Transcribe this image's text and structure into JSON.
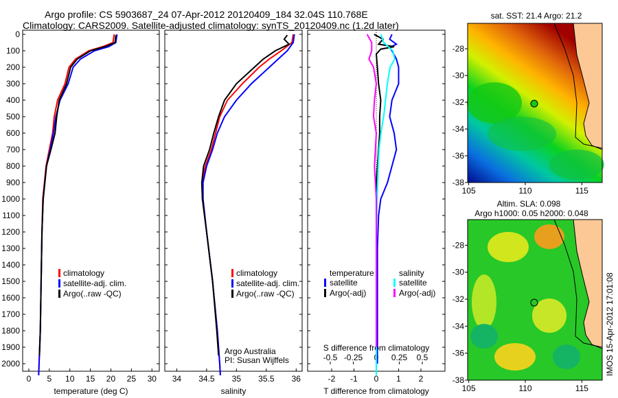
{
  "title": {
    "line1": "Argo profile: CS 5903687_24 07-Apr-2012 20120409_184 32.04S 110.768E",
    "line2": "Climatology: CARS2009. Satellite-adjusted climatology: synTS_20120409.nc (1.2d later)"
  },
  "timestamp": "IMOS 15-Apr-2012 17:01:08",
  "chart_data": [
    {
      "type": "line",
      "id": "temperature",
      "xlabel": "temperature (deg C)",
      "ylabel": "",
      "xlim": [
        -1.5,
        31.8
      ],
      "ylim": [
        2070,
        0
      ],
      "xticks": [
        0,
        5,
        10,
        15,
        20,
        25,
        30
      ],
      "yticks": [
        0,
        100,
        200,
        300,
        400,
        500,
        600,
        700,
        800,
        900,
        1000,
        1100,
        1200,
        1300,
        1400,
        1500,
        1600,
        1700,
        1800,
        1900,
        2000
      ],
      "legend": [
        "climatology",
        "satellite-adj. clim.",
        "Argo(..raw -QC)"
      ],
      "legend_position": "lower-center",
      "series": [
        {
          "name": "climatology",
          "color": "#ff0000",
          "depth": [
            0,
            50,
            75,
            100,
            150,
            200,
            300,
            400,
            500,
            600,
            700,
            800,
            900,
            1000,
            1200,
            1500,
            1800,
            2000,
            2070
          ],
          "values": [
            20.8,
            20.5,
            18,
            14.6,
            11.4,
            9.8,
            8.8,
            7.0,
            6.2,
            5.8,
            5.0,
            4.2,
            3.8,
            3.4,
            3.2,
            3.0,
            2.8,
            2.5,
            2.4
          ]
        },
        {
          "name": "satellite-adj. clim.",
          "color": "#0000ff",
          "depth": [
            0,
            50,
            75,
            100,
            150,
            200,
            300,
            400,
            500,
            600,
            700,
            800,
            900,
            1000,
            1200,
            1500,
            1800,
            2000,
            2070
          ],
          "values": [
            21.5,
            21.2,
            19.5,
            16,
            12.6,
            10.8,
            9.6,
            7.6,
            6.6,
            6.0,
            5.2,
            4.3,
            3.9,
            3.5,
            3.2,
            3.0,
            2.8,
            2.5,
            2.4
          ]
        },
        {
          "name": "Argo(..raw -QC)",
          "color": "#000000",
          "depth": [
            5,
            50,
            75,
            100,
            150,
            200,
            300,
            400,
            500,
            600,
            700,
            800,
            900,
            1000,
            1200,
            1500,
            1800,
            1950
          ],
          "values": [
            21.2,
            21.0,
            18.5,
            15.0,
            11.8,
            10.2,
            9.2,
            7.4,
            6.8,
            6.4,
            5.4,
            4.3,
            3.9,
            3.5,
            3.2,
            3.0,
            2.8,
            2.6
          ]
        }
      ]
    },
    {
      "type": "line",
      "id": "salinity",
      "xlabel": "salinity",
      "xlim": [
        33.8,
        36.1
      ],
      "ylim": [
        2070,
        0
      ],
      "xticks": [
        34,
        34.5,
        35,
        35.5,
        36
      ],
      "legend": [
        "climatology",
        "satellite-adj. clim.",
        "Argo(..raw -QC)"
      ],
      "annotation": [
        "Argo Australia",
        "PI: Susan Wijffels"
      ],
      "series": [
        {
          "name": "climatology",
          "color": "#ff0000",
          "depth": [
            0,
            50,
            100,
            150,
            200,
            300,
            400,
            500,
            600,
            700,
            800,
            900,
            1000,
            1200,
            1500,
            1800,
            2000,
            2070
          ],
          "values": [
            35.95,
            35.93,
            35.75,
            35.55,
            35.38,
            35.1,
            34.85,
            34.72,
            34.65,
            34.58,
            34.48,
            34.42,
            34.43,
            34.5,
            34.6,
            34.68,
            34.72,
            34.73
          ]
        },
        {
          "name": "satellite-adj. clim.",
          "color": "#0000ff",
          "depth": [
            0,
            50,
            100,
            150,
            200,
            300,
            400,
            500,
            600,
            700,
            800,
            900,
            1000,
            1200,
            1500,
            1800,
            2000,
            2070
          ],
          "values": [
            35.97,
            35.95,
            35.85,
            35.7,
            35.55,
            35.25,
            35.0,
            34.8,
            34.68,
            34.6,
            34.5,
            34.44,
            34.44,
            34.5,
            34.6,
            34.68,
            34.72,
            34.73
          ]
        },
        {
          "name": "Argo(..raw -QC)",
          "color": "#000000",
          "depth": [
            5,
            30,
            60,
            100,
            150,
            200,
            300,
            400,
            500,
            600,
            700,
            800,
            900,
            1000,
            1200,
            1500,
            1800,
            1950
          ],
          "values": [
            35.85,
            35.8,
            35.88,
            35.65,
            35.45,
            35.3,
            35.0,
            34.8,
            34.7,
            34.62,
            34.55,
            34.45,
            34.42,
            34.43,
            34.5,
            34.6,
            34.67,
            34.7
          ]
        }
      ]
    },
    {
      "type": "line",
      "id": "difference",
      "xlabel": "T difference from climatology",
      "xlabel2": "S difference from climatology",
      "xlim": [
        -3.05,
        3.1
      ],
      "ylim": [
        2070,
        0
      ],
      "xticks": [
        -2,
        -1,
        0,
        1,
        2
      ],
      "xticks2": [
        -0.5,
        -0.25,
        0,
        0.25,
        0.5
      ],
      "legend_titles": [
        "temperature",
        "salinity"
      ],
      "legend": [
        "satellite",
        "Argo(-adj)",
        "satellite",
        "Argo(-adj)"
      ],
      "series": [
        {
          "name": "temperature satellite",
          "color": "#0000ff",
          "units": "T",
          "depth": [
            0,
            30,
            60,
            80,
            100,
            150,
            200,
            300,
            400,
            500,
            600,
            700,
            800,
            900,
            1000,
            1100,
            1300,
            1500,
            2000
          ],
          "values": [
            0.7,
            0.6,
            0.9,
            0.6,
            0.7,
            0.9,
            1.0,
            1.0,
            0.7,
            0.6,
            0.8,
            0.9,
            0.7,
            0.5,
            0.2,
            0.1,
            0.05,
            0.05,
            0.05
          ]
        },
        {
          "name": "temperature Argo(-adj)",
          "color": "#000000",
          "units": "T",
          "depth": [
            0,
            30,
            60,
            75,
            90,
            120,
            200,
            300,
            400,
            500,
            600,
            700,
            800,
            900,
            1000,
            1200,
            1500,
            1900
          ],
          "values": [
            -0.1,
            0.3,
            0.1,
            0.8,
            0.2,
            0.0,
            0.05,
            0.1,
            0.2,
            0.15,
            0.15,
            0.1,
            0.05,
            0.0,
            0.0,
            0.0,
            0.0,
            0.0
          ]
        },
        {
          "name": "salinity satellite",
          "color": "#00ffff",
          "units": "S",
          "depth": [
            0,
            50,
            100,
            150,
            200,
            300,
            400,
            500,
            600,
            700,
            800,
            1000,
            1200,
            1500,
            2000,
            2070
          ],
          "values": [
            0.05,
            0.08,
            0.18,
            0.2,
            0.15,
            0.12,
            0.1,
            0.08,
            0.05,
            0.03,
            0.02,
            0.01,
            0,
            0,
            0,
            0
          ]
        },
        {
          "name": "salinity Argo(-adj)",
          "color": "#ff00ff",
          "units": "S",
          "depth": [
            0,
            50,
            100,
            150,
            200,
            300,
            400,
            500,
            600,
            700,
            800,
            900,
            1000,
            1100,
            1500,
            1900
          ],
          "values": [
            -0.1,
            -0.05,
            -0.05,
            -0.08,
            -0.03,
            0.0,
            -0.02,
            -0.03,
            0.0,
            -0.01,
            -0.02,
            -0.01,
            0.0,
            0.0,
            0.0,
            0.0
          ]
        }
      ]
    },
    {
      "type": "heatmap",
      "id": "sst-map",
      "title": "sat. SST: 21.4 Argo: 21.2",
      "xticks": [
        105,
        110,
        115
      ],
      "yticks": [
        -28,
        -30,
        -32,
        -34,
        -36,
        -38
      ],
      "xlim": [
        104.9,
        116.8
      ],
      "ylim": [
        -38,
        -26.1
      ],
      "marker": {
        "lon": 110.768,
        "lat": -32.04
      }
    },
    {
      "type": "heatmap",
      "id": "sla-map",
      "title": "Altim. SLA: 0.098",
      "subtitle": "Argo h1000: 0.05 h2000: 0.048",
      "xticks": [
        105,
        110,
        115
      ],
      "yticks": [
        -28,
        -30,
        -32,
        -34,
        -36,
        -38
      ],
      "xlim": [
        104.9,
        116.8
      ],
      "ylim": [
        -38,
        -26.1
      ],
      "marker": {
        "lon": 110.768,
        "lat": -32.04
      }
    }
  ]
}
